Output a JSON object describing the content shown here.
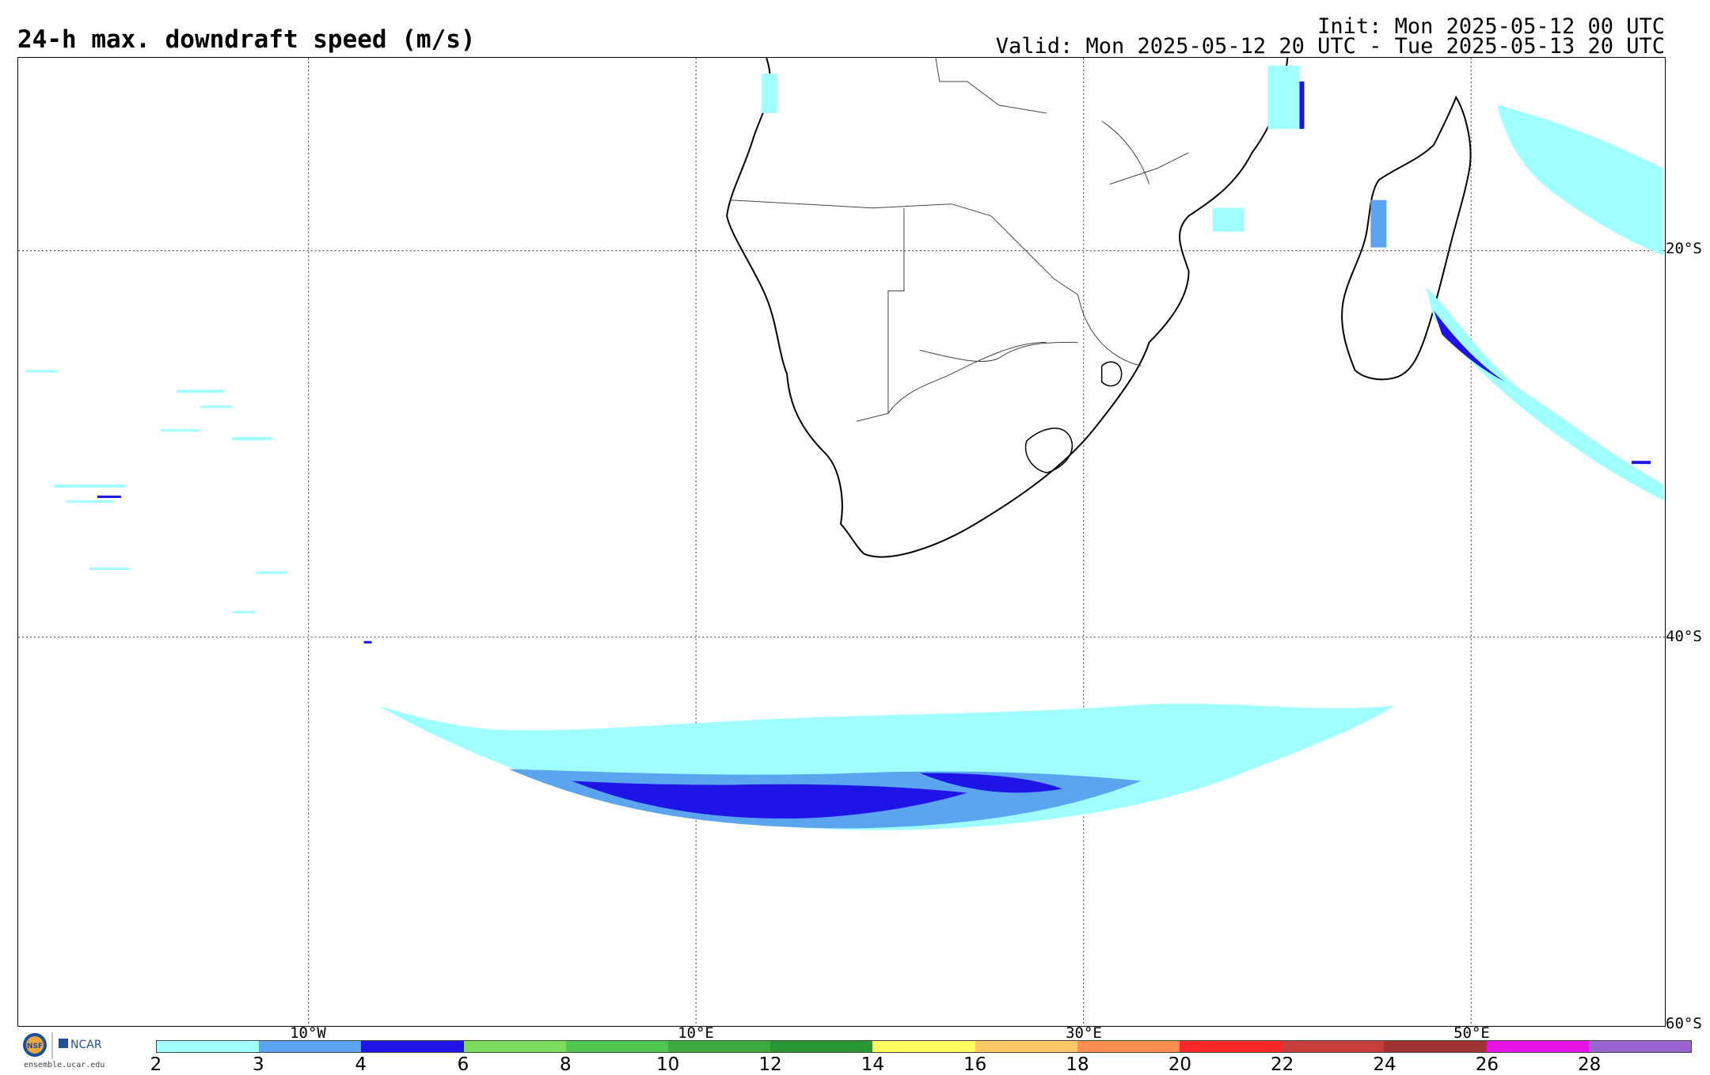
{
  "header": {
    "title": "24-h max. downdraft speed (m/s)",
    "init": "Init: Mon 2025-05-12 00 UTC",
    "valid": "Valid: Mon 2025-05-12 20 UTC - Tue 2025-05-13 20 UTC"
  },
  "map": {
    "lat_labels": [
      "20°S",
      "40°S",
      "60°S"
    ],
    "lon_labels": [
      "10°W",
      "10°E",
      "30°E",
      "50°E"
    ],
    "gridline_style": "dotted"
  },
  "colorbar": {
    "ticks": [
      "2",
      "3",
      "4",
      "6",
      "8",
      "10",
      "12",
      "14",
      "16",
      "18",
      "20",
      "22",
      "24",
      "26",
      "28"
    ],
    "colors": [
      "#a0ffff",
      "#5ba5f0",
      "#1e14e6",
      "#7adc5a",
      "#50c850",
      "#3caa3c",
      "#289632",
      "#ffff64",
      "#ffc864",
      "#ff8c50",
      "#fa2828",
      "#c83c3c",
      "#a03232",
      "#e614e6",
      "#9b64d2"
    ]
  },
  "logo": {
    "org_a": "NSF",
    "org_b": "NCAR",
    "url": "ensemble.ucar.edu"
  }
}
